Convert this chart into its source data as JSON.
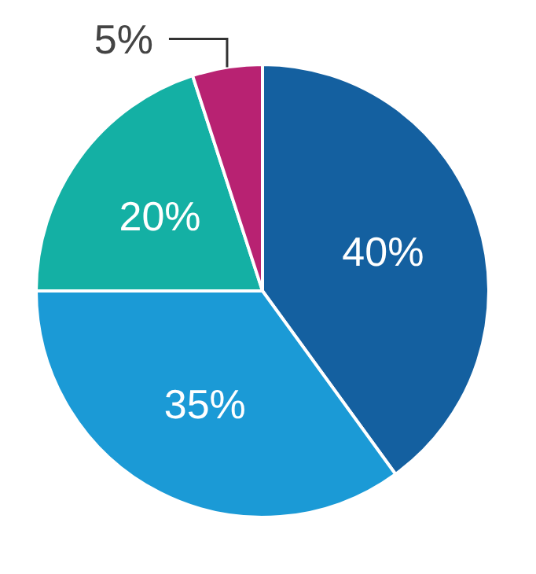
{
  "chart_data": {
    "type": "pie",
    "categories": [
      null,
      null,
      null,
      null
    ],
    "values": [
      40,
      35,
      20,
      5
    ],
    "colors": [
      "#1460a0",
      "#1b9ad6",
      "#14b0a4",
      "#b82272"
    ],
    "value_labels": [
      "40%",
      "35%",
      "20%",
      "5%"
    ]
  }
}
